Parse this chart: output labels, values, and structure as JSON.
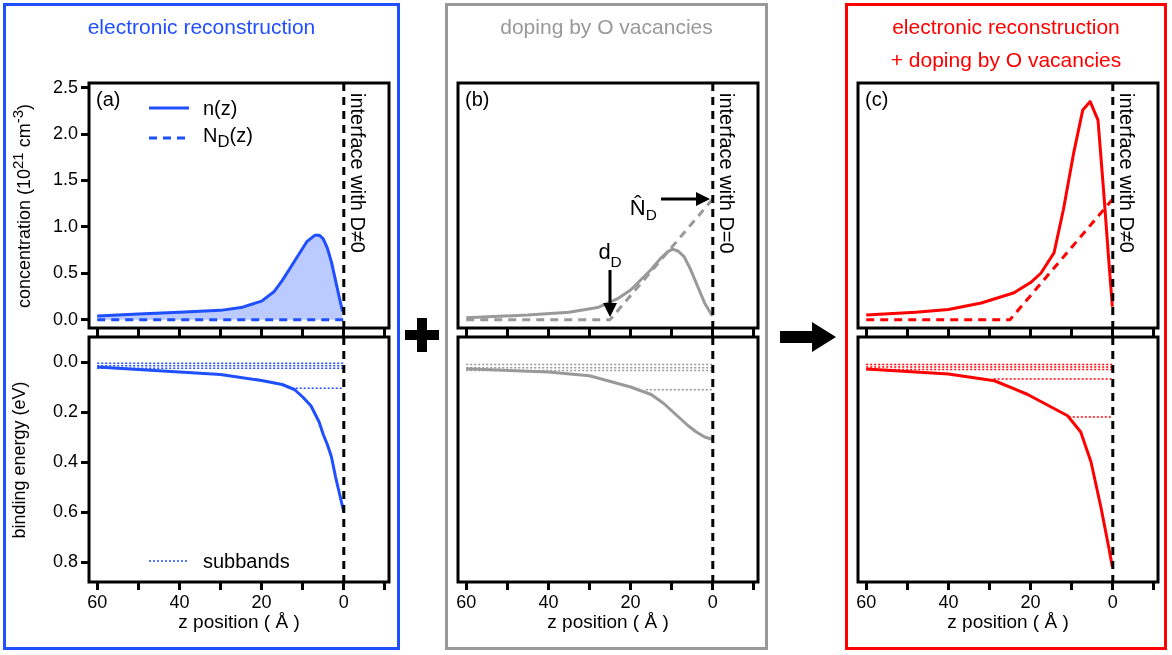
{
  "chart_data": [
    {
      "type": "line",
      "title": "electronic reconstruction",
      "ylabel": "concentration (10$^{21}$ cm$^{-3}$)",
      "xlim": [
        62,
        -11
      ],
      "xticks": [
        60,
        {
          "value": 50,
          "label": null
        },
        40,
        {
          "value": 30,
          "label": null
        },
        20,
        {
          "value": 10,
          "label": null
        },
        0,
        {
          "value": -10,
          "label": null
        }
      ],
      "ylim": [
        -0.09,
        2.55
      ],
      "yticks": [
        {
          "value": 0,
          "label": "0.0"
        },
        0.5,
        {
          "value": 1,
          "label": "1.0"
        },
        1.5,
        {
          "value": 2,
          "label": "2.0"
        },
        2.5
      ],
      "tick_labels": "y",
      "legend": "top left",
      "annotations": [
        "(a)"
      ],
      "ref_lines": [
        {
          "axis": "x",
          "value": 0,
          "label": "interface with D≠0",
          "color": "#000000",
          "line_style": "dashed"
        }
      ],
      "series": [
        {
          "name": "n(z)",
          "type": "area",
          "color": "#1f4fff",
          "line_style": "solid",
          "x": [
            60,
            50,
            40,
            30,
            25,
            20,
            17,
            15,
            13,
            11,
            9,
            7,
            6,
            5,
            4,
            3,
            2,
            1,
            0.3
          ],
          "values": [
            0.04,
            0.06,
            0.08,
            0.1,
            0.13,
            0.2,
            0.3,
            0.42,
            0.56,
            0.7,
            0.84,
            0.91,
            0.91,
            0.87,
            0.77,
            0.62,
            0.42,
            0.22,
            0.09
          ]
        },
        {
          "name": "N$_{D}$(z)",
          "type": "line",
          "color": "#1f4fff",
          "line_style": "dashed",
          "x": [
            60,
            0
          ],
          "values": [
            0,
            0
          ]
        }
      ]
    },
    {
      "type": "line",
      "xlabel": "z position ( Å )",
      "ylabel": "binding energy (eV)",
      "xlim": [
        62,
        -11
      ],
      "xticks": [
        60,
        {
          "value": 50,
          "label": null
        },
        40,
        {
          "value": 30,
          "label": null
        },
        20,
        {
          "value": 10,
          "label": null
        },
        0,
        {
          "value": -10,
          "label": null
        }
      ],
      "ylim": [
        0.88,
        -0.1
      ],
      "yticks": [
        {
          "value": 0,
          "label": "0.0"
        },
        0.2,
        0.4,
        0.6,
        0.8
      ],
      "legend": "bottom left",
      "ref_lines": [
        {
          "axis": "x",
          "value": 0,
          "color": "#000000",
          "line_style": "dashed"
        }
      ],
      "series": [
        {
          "type": "line",
          "color": "#1f4fff",
          "line_style": "solid",
          "x": [
            60,
            40,
            30,
            20,
            15,
            12,
            10,
            8,
            6,
            5,
            4,
            3,
            2,
            1,
            0
          ],
          "values": [
            0.02,
            0.04,
            0.05,
            0.074,
            0.09,
            0.11,
            0.14,
            0.175,
            0.24,
            0.29,
            0.33,
            0.38,
            0.46,
            0.53,
            0.6
          ]
        },
        {
          "name": "subbands",
          "type": "line",
          "color": "#1f4fff",
          "line_style": "dotted",
          "x": [
            60,
            0
          ],
          "values": [
            0.005,
            0.005
          ]
        },
        {
          "type": "line",
          "color": "#1f4fff",
          "line_style": "dotted",
          "x": [
            60,
            0
          ],
          "values": [
            0.015,
            0.015
          ]
        },
        {
          "type": "line",
          "color": "#1f4fff",
          "line_style": "dotted",
          "x": [
            60,
            0
          ],
          "values": [
            0.025,
            0.025
          ]
        },
        {
          "type": "line",
          "color": "#1f4fff",
          "line_style": "dotted",
          "x": [
            11.7,
            0
          ],
          "values": [
            0.105,
            0.105
          ]
        }
      ]
    },
    {
      "type": "line",
      "title": "doping by O vacancies",
      "xlim": [
        62,
        -11
      ],
      "xticks": [
        60,
        {
          "value": 50,
          "label": null
        },
        40,
        {
          "value": 30,
          "label": null
        },
        20,
        {
          "value": 10,
          "label": null
        },
        0,
        {
          "value": -10,
          "label": null
        }
      ],
      "ylim": [
        -0.09,
        2.55
      ],
      "tick_labels": false,
      "annotations": [
        "(b)",
        {
          "text": "N̂$_{D}$",
          "x": 0,
          "y": 1.3
        },
        {
          "text": "d$_{D}$",
          "x": 25,
          "y": 0
        }
      ],
      "ref_lines": [
        {
          "axis": "x",
          "value": 0,
          "label": "interface with D=0",
          "color": "#000000",
          "line_style": "dashed"
        }
      ],
      "series": [
        {
          "type": "line",
          "color": "#999999",
          "line_style": "solid",
          "x": [
            60,
            45,
            35,
            28,
            23,
            20,
            17.5,
            15,
            12.7,
            11,
            9.8,
            8.5,
            7,
            5.5,
            3.7,
            2,
            0.1
          ],
          "values": [
            0.02,
            0.05,
            0.08,
            0.13,
            0.23,
            0.32,
            0.43,
            0.54,
            0.66,
            0.73,
            0.76,
            0.74,
            0.68,
            0.55,
            0.36,
            0.18,
            0.04
          ]
        },
        {
          "type": "line",
          "color": "#999999",
          "line_style": "dashed",
          "x": [
            60,
            25,
            0
          ],
          "values": [
            0,
            0,
            1.3
          ]
        }
      ]
    },
    {
      "type": "line",
      "xlabel": "z position ( Å )",
      "xlim": [
        62,
        -11
      ],
      "xticks": [
        60,
        {
          "value": 50,
          "label": null
        },
        40,
        {
          "value": 30,
          "label": null
        },
        20,
        {
          "value": 10,
          "label": null
        },
        0,
        {
          "value": -10,
          "label": null
        }
      ],
      "ylim": [
        0.88,
        -0.1
      ],
      "tick_labels": "x",
      "ref_lines": [
        {
          "axis": "x",
          "value": 0,
          "color": "#000000",
          "line_style": "dashed"
        }
      ],
      "series": [
        {
          "type": "line",
          "color": "#999999",
          "line_style": "solid",
          "x": [
            60,
            40,
            30,
            20,
            15,
            12,
            9,
            6,
            4,
            2,
            0
          ],
          "values": [
            0.027,
            0.04,
            0.055,
            0.1,
            0.13,
            0.165,
            0.21,
            0.255,
            0.28,
            0.3,
            0.31
          ]
        },
        {
          "type": "line",
          "color": "#999999",
          "line_style": "dotted",
          "x": [
            60,
            0
          ],
          "values": [
            0.01,
            0.01
          ]
        },
        {
          "type": "line",
          "color": "#999999",
          "line_style": "dotted",
          "x": [
            60,
            0
          ],
          "values": [
            0.023,
            0.023
          ]
        },
        {
          "type": "line",
          "color": "#999999",
          "line_style": "dotted",
          "x": [
            60,
            0
          ],
          "values": [
            0.034,
            0.034
          ]
        },
        {
          "type": "line",
          "color": "#999999",
          "line_style": "dotted",
          "x": [
            16.3,
            0
          ],
          "values": [
            0.111,
            0.111
          ]
        }
      ]
    },
    {
      "type": "line",
      "title": "electronic reconstruction\n+ doping by O vacancies",
      "xlim": [
        62,
        -11
      ],
      "xticks": [
        60,
        {
          "value": 50,
          "label": null
        },
        40,
        {
          "value": 30,
          "label": null
        },
        20,
        {
          "value": 10,
          "label": null
        },
        0,
        {
          "value": -10,
          "label": null
        }
      ],
      "ylim": [
        -0.09,
        2.55
      ],
      "tick_labels": false,
      "annotations": [
        "(c)"
      ],
      "ref_lines": [
        {
          "axis": "x",
          "value": 0,
          "label": "interface with D≠0",
          "color": "#000000",
          "line_style": "dashed"
        }
      ],
      "series": [
        {
          "type": "line",
          "color": "#ff0000",
          "line_style": "solid",
          "x": [
            60,
            48,
            40,
            32,
            24,
            20,
            17.5,
            14.3,
            12,
            9.5,
            7.3,
            5.5,
            3.6,
            2.2,
            1,
            0.1
          ],
          "values": [
            0.05,
            0.08,
            0.11,
            0.18,
            0.29,
            0.4,
            0.5,
            0.72,
            1.19,
            1.8,
            2.26,
            2.35,
            2.15,
            1.37,
            0.65,
            0.14
          ]
        },
        {
          "type": "line",
          "color": "#ff0000",
          "line_style": "dashed",
          "x": [
            60,
            25,
            0
          ],
          "values": [
            0,
            0,
            1.3
          ]
        }
      ]
    },
    {
      "type": "line",
      "xlabel": "z position ( Å )",
      "xlim": [
        62,
        -11
      ],
      "xticks": [
        60,
        {
          "value": 50,
          "label": null
        },
        40,
        {
          "value": 30,
          "label": null
        },
        20,
        {
          "value": 10,
          "label": null
        },
        0,
        {
          "value": -10,
          "label": null
        }
      ],
      "ylim": [
        0.88,
        -0.1
      ],
      "tick_labels": "x",
      "ref_lines": [
        {
          "axis": "x",
          "value": 0,
          "color": "#000000",
          "line_style": "dashed"
        }
      ],
      "series": [
        {
          "type": "line",
          "color": "#ff0000",
          "line_style": "solid",
          "x": [
            60,
            40,
            28.8,
            20.7,
            15,
            11,
            7.8,
            5.3,
            2.9,
            1,
            0.1
          ],
          "values": [
            0.028,
            0.048,
            0.075,
            0.13,
            0.18,
            0.215,
            0.28,
            0.4,
            0.58,
            0.74,
            0.82
          ]
        },
        {
          "type": "line",
          "color": "#ff0000",
          "line_style": "dotted",
          "x": [
            60,
            0
          ],
          "values": [
            0.01,
            0.01
          ]
        },
        {
          "type": "line",
          "color": "#ff0000",
          "line_style": "dotted",
          "x": [
            60,
            0
          ],
          "values": [
            0.02,
            0.02
          ]
        },
        {
          "type": "line",
          "color": "#ff0000",
          "line_style": "dotted",
          "x": [
            60,
            0
          ],
          "values": [
            0.03,
            0.03
          ]
        },
        {
          "type": "line",
          "color": "#ff0000",
          "line_style": "dotted",
          "x": [
            29,
            0
          ],
          "values": [
            0.068,
            0.068
          ]
        },
        {
          "type": "line",
          "color": "#ff0000",
          "line_style": "dotted",
          "x": [
            10.7,
            0
          ],
          "values": [
            0.22,
            0.22
          ]
        }
      ]
    }
  ]
}
